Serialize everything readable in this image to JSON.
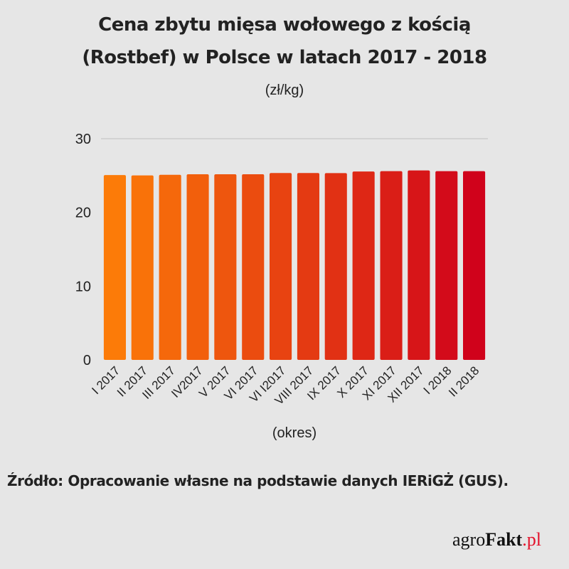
{
  "title_line1": "Cena zbytu mięsa wołowego z kością",
  "title_line2": "(Rostbef) w Polsce w latach 2017 - 2018",
  "unit_label": "(zł/kg)",
  "source": "Źródło: Opracowanie własne na podstawie danych IERiGŻ (GUS).",
  "logo": {
    "part1": "agro",
    "part2": "Fakt",
    "part3": ".pl"
  },
  "colors": {
    "background": "#e6e6e6",
    "bar_start": "#fc7b08",
    "bar_end": "#d0021b",
    "logo_accent": "#e3132b",
    "grid": "#bdbdbd"
  },
  "chart_data": {
    "type": "bar",
    "title": "Cena zbytu mięsa wołowego z kością (Rostbef) w Polsce w latach 2017 - 2018",
    "subtitle": "(zł/kg)",
    "xlabel": "(okres)",
    "ylabel": "",
    "ylim": [
      0,
      30
    ],
    "yticks": [
      0,
      10,
      20,
      30
    ],
    "grid": "horizontal-top",
    "categories": [
      "I 2017",
      "II 2017",
      "III 2017",
      "IV2017",
      "V 2017",
      "VI 2017",
      "VI I2017",
      "VIII 2017",
      "IX 2017",
      "X 2017",
      "XI 2017",
      "XII 2017",
      "I 2018",
      "II 2018"
    ],
    "values": [
      25.07,
      25.02,
      25.1,
      25.18,
      25.18,
      25.18,
      25.35,
      25.35,
      25.33,
      25.55,
      25.6,
      25.7,
      25.6,
      25.6
    ]
  }
}
